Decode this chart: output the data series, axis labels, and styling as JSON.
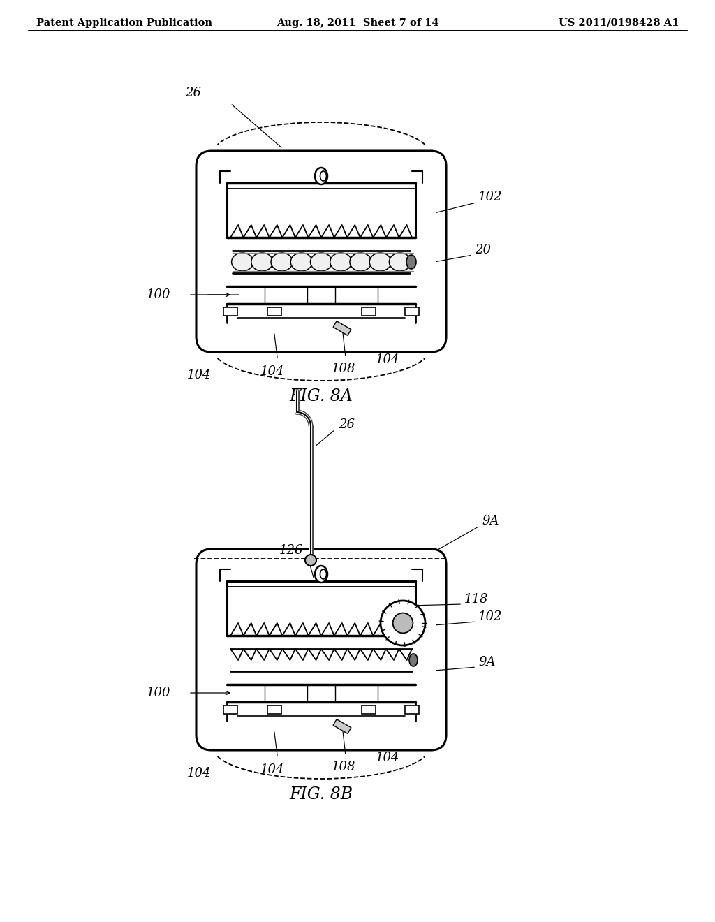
{
  "bg_color": "#ffffff",
  "header_left": "Patent Application Publication",
  "header_center": "Aug. 18, 2011  Sheet 7 of 14",
  "header_right": "US 2011/0198428 A1",
  "header_fontsize": 10.5,
  "fig8a_label": "FIG. 8A",
  "fig8b_label": "FIG. 8B",
  "label_fontsize": 17
}
